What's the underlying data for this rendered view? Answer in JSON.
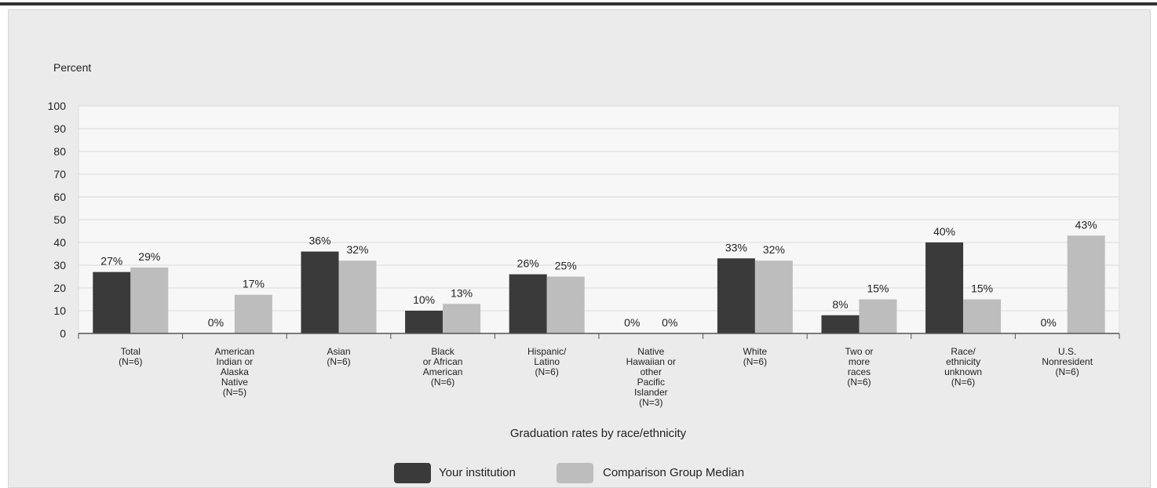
{
  "chart_data": {
    "type": "bar",
    "ylabel": "Percent",
    "xlabel": "Graduation rates by race/ethnicity",
    "ylim": [
      0,
      100
    ],
    "yticks": [
      0,
      10,
      20,
      30,
      40,
      50,
      60,
      70,
      80,
      90,
      100
    ],
    "grid": true,
    "legend_position": "bottom",
    "categories": [
      [
        "Total",
        "(N=6)"
      ],
      [
        "American",
        "Indian or",
        "Alaska",
        "Native",
        "(N=5)"
      ],
      [
        "Asian",
        "(N=6)"
      ],
      [
        "Black",
        "or African",
        "American",
        "(N=6)"
      ],
      [
        "Hispanic/",
        "Latino",
        "(N=6)"
      ],
      [
        "Native",
        "Hawaiian or",
        "other",
        "Pacific",
        "Islander",
        "(N=3)"
      ],
      [
        "White",
        "(N=6)"
      ],
      [
        "Two or",
        "more",
        "races",
        "(N=6)"
      ],
      [
        "Race/",
        "ethnicity",
        "unknown",
        "(N=6)"
      ],
      [
        "U.S.",
        "Nonresident",
        "(N=6)"
      ]
    ],
    "series": [
      {
        "name": "Your institution",
        "color": "#3a3a3a",
        "values": [
          27,
          0,
          36,
          10,
          26,
          0,
          33,
          8,
          40,
          0
        ],
        "labels": [
          "27%",
          "0%",
          "36%",
          "10%",
          "26%",
          "0%",
          "33%",
          "8%",
          "40%",
          "0%"
        ]
      },
      {
        "name": "Comparison Group Median",
        "color": "#bdbdbd",
        "values": [
          29,
          17,
          32,
          13,
          25,
          0,
          32,
          15,
          15,
          43
        ],
        "labels": [
          "29%",
          "17%",
          "32%",
          "13%",
          "25%",
          "0%",
          "32%",
          "15%",
          "15%",
          "43%"
        ]
      }
    ]
  }
}
